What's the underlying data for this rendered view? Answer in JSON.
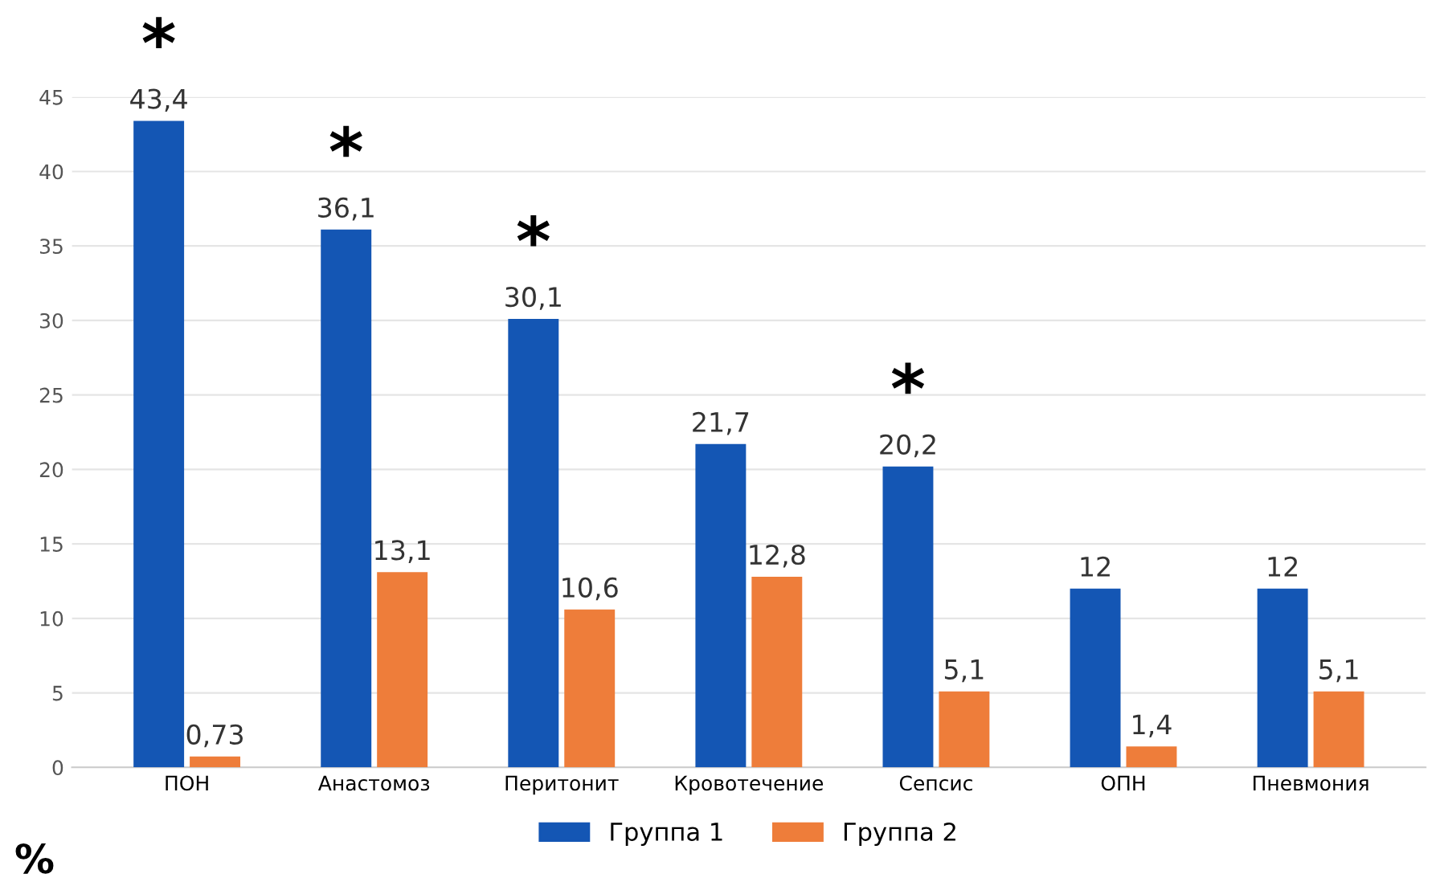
{
  "chart_data": {
    "type": "bar",
    "ylabel": "%",
    "categories": [
      "ПОН",
      "Анастомоз",
      "Перитонит",
      "Кровотечение",
      "Сепсис",
      "ОПН",
      "Пневмония"
    ],
    "series": [
      {
        "name": "Группа 1",
        "color": "#1456b4",
        "values": [
          43.4,
          36.1,
          30.1,
          21.7,
          20.2,
          12,
          12
        ],
        "value_labels": [
          "43,4",
          "36,1",
          "30,1",
          "21,7",
          "20,2",
          "12",
          "12"
        ]
      },
      {
        "name": "Группа 2",
        "color": "#ee7d3a",
        "values": [
          0.73,
          13.1,
          10.6,
          12.8,
          5.1,
          1.4,
          5.1
        ],
        "value_labels": [
          "0,73",
          "13,1",
          "10,6",
          "12,8",
          "5,1",
          "1,4",
          "5,1"
        ]
      }
    ],
    "ylim": [
      0,
      45
    ],
    "yticks": [
      0,
      5,
      10,
      15,
      20,
      25,
      30,
      35,
      40,
      45
    ],
    "grid": "y",
    "legend": "bottom",
    "annotations": [
      {
        "text": "*",
        "x": "ПОН",
        "y": 43.4
      },
      {
        "text": "*",
        "x": "Анастомоз",
        "y": 36.1
      },
      {
        "text": "*",
        "x": "Перитонит",
        "y": 30.1
      },
      {
        "text": "*",
        "x": "Сепсис",
        "y": 20.2
      }
    ]
  }
}
